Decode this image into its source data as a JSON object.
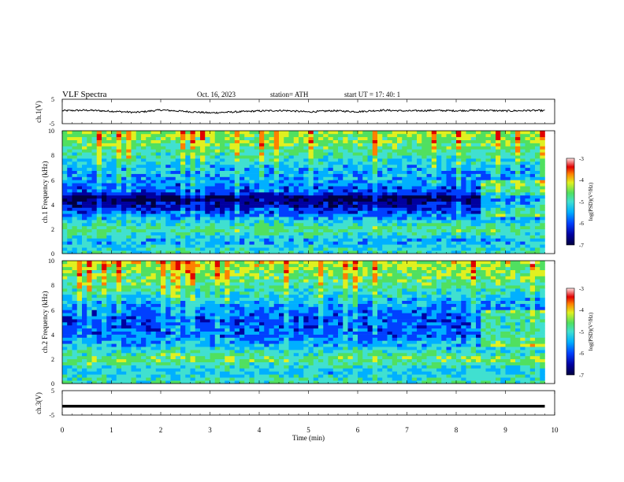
{
  "header": {
    "title": "VLF  Spectra",
    "date": "Oct. 16, 2023",
    "station": "station= ATH",
    "start": "start  UT  =    17: 40: 1"
  },
  "colors": {
    "colormap": [
      "#000040",
      "#0000a0",
      "#0040ff",
      "#00b0ff",
      "#40e0d0",
      "#50e060",
      "#e0f020",
      "#ff8000",
      "#e00000",
      "#ffe0e0"
    ],
    "waveform": "#000000",
    "axis": "#000000"
  },
  "chart_data": [
    {
      "type": "line",
      "panel": "ch1-waveform",
      "ylabel": "ch.1(V)",
      "ylim": [
        -5,
        5
      ],
      "yticks": [
        "5",
        "-5"
      ],
      "x": [
        0,
        0.5,
        1,
        1.5,
        2,
        2.5,
        3,
        3.5,
        4,
        4.5,
        5,
        5.5,
        6,
        6.5,
        7,
        7.5,
        8,
        8.5,
        9,
        9.5,
        9.8
      ],
      "values": [
        0.3,
        0.5,
        0.1,
        -0.4,
        0.6,
        0.0,
        -0.6,
        -0.2,
        0.2,
        0.4,
        -0.2,
        0.3,
        -0.1,
        0.5,
        0.2,
        0.4,
        0.3,
        0.5,
        0.2,
        0.4,
        0.3
      ]
    },
    {
      "type": "heatmap",
      "panel": "ch1-spectrogram",
      "ylabel": "ch.1  Frequency  (kHz)",
      "yticks": [
        "0",
        "2",
        "4",
        "6",
        "8",
        "10"
      ],
      "ylim": [
        0,
        10
      ],
      "xlim": [
        0,
        9.8
      ],
      "colorbar": {
        "label": "log(PSD)(V²/Hz)",
        "ticks": [
          "-3",
          "-4",
          "-5",
          "-6",
          "-7"
        ],
        "range": [
          -7,
          -3
        ]
      },
      "profile": {
        "freq_khz": [
          0.3,
          1.0,
          2.0,
          3.0,
          4.0,
          4.5,
          5.0,
          6.0,
          7.0,
          8.0,
          9.0,
          10.0
        ],
        "log_psd": [
          -5.2,
          -5.6,
          -4.9,
          -5.7,
          -6.4,
          -6.8,
          -6.0,
          -5.7,
          -5.5,
          -5.1,
          -4.8,
          -4.6
        ]
      }
    },
    {
      "type": "heatmap",
      "panel": "ch2-spectrogram",
      "ylabel": "ch.2  Frequency  (kHz)",
      "yticks": [
        "0",
        "2",
        "4",
        "6",
        "8",
        "10"
      ],
      "ylim": [
        0,
        10
      ],
      "xlim": [
        0,
        9.8
      ],
      "colorbar": {
        "label": "log(PSD)(V²/Hz)",
        "ticks": [
          "-3",
          "-4",
          "-5",
          "-6",
          "-7"
        ],
        "range": [
          -7,
          -3
        ]
      },
      "profile": {
        "freq_khz": [
          0.3,
          1.0,
          2.0,
          3.0,
          4.0,
          5.0,
          6.0,
          7.0,
          8.0,
          9.0,
          10.0
        ],
        "log_psd": [
          -5.1,
          -5.5,
          -4.8,
          -5.5,
          -5.9,
          -6.0,
          -5.8,
          -5.4,
          -5.0,
          -4.7,
          -4.5
        ]
      }
    },
    {
      "type": "line",
      "panel": "ch3-waveform",
      "ylabel": "ch.3(V)",
      "ylim": [
        -5,
        5
      ],
      "yticks": [
        "5",
        "-5"
      ],
      "x": [
        0,
        9.8
      ],
      "values": [
        -1.4,
        -1.4
      ]
    }
  ],
  "time_axis": {
    "xlabel": "Time  (min)",
    "xlim": [
      0,
      10
    ],
    "ticks": [
      "0",
      "1",
      "2",
      "3",
      "4",
      "5",
      "6",
      "7",
      "8",
      "9",
      "10"
    ]
  }
}
